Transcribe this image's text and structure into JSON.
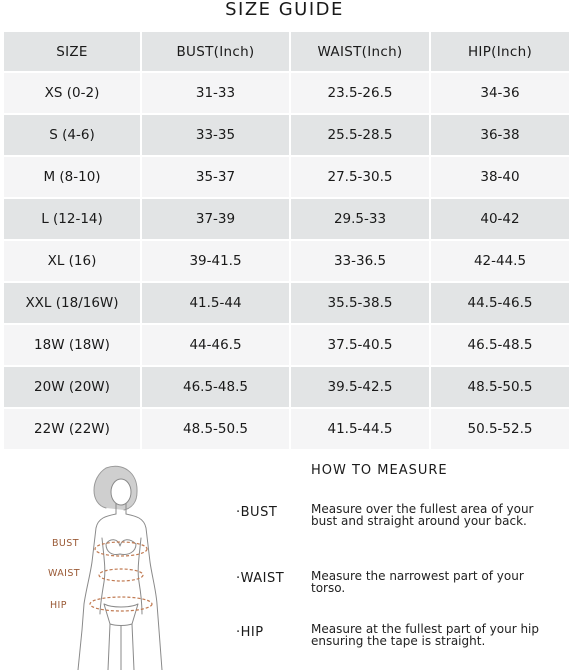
{
  "title": "SIZE GUIDE",
  "table": {
    "headers": [
      "SIZE",
      "BUST(Inch)",
      "WAIST(Inch)",
      "HIP(Inch)"
    ],
    "rows": [
      [
        "XS (0-2)",
        "31-33",
        "23.5-26.5",
        "34-36"
      ],
      [
        "S (4-6)",
        "33-35",
        "25.5-28.5",
        "36-38"
      ],
      [
        "M (8-10)",
        "35-37",
        "27.5-30.5",
        "38-40"
      ],
      [
        "L (12-14)",
        "37-39",
        "29.5-33",
        "40-42"
      ],
      [
        "XL (16)",
        "39-41.5",
        "33-36.5",
        "42-44.5"
      ],
      [
        "XXL (18/16W)",
        "41.5-44",
        "35.5-38.5",
        "44.5-46.5"
      ],
      [
        "18W (18W)",
        "44-46.5",
        "37.5-40.5",
        "46.5-48.5"
      ],
      [
        "20W (20W)",
        "46.5-48.5",
        "39.5-42.5",
        "48.5-50.5"
      ],
      [
        "22W (22W)",
        "48.5-50.5",
        "41.5-44.5",
        "50.5-52.5"
      ]
    ]
  },
  "figure": {
    "labels": [
      "BUST",
      "WAIST",
      "HIP"
    ],
    "line_color": "#c07a52"
  },
  "measure": {
    "title": "HOW TO MEASURE",
    "items": [
      {
        "term": "·BUST",
        "desc": "Measure over the fullest area of your bust and straight around your back."
      },
      {
        "term": "·WAIST",
        "desc": "Measure the narrowest part of your torso."
      },
      {
        "term": "·HIP",
        "desc": "Measure at the fullest part of your hip ensuring the tape is straight."
      }
    ]
  }
}
